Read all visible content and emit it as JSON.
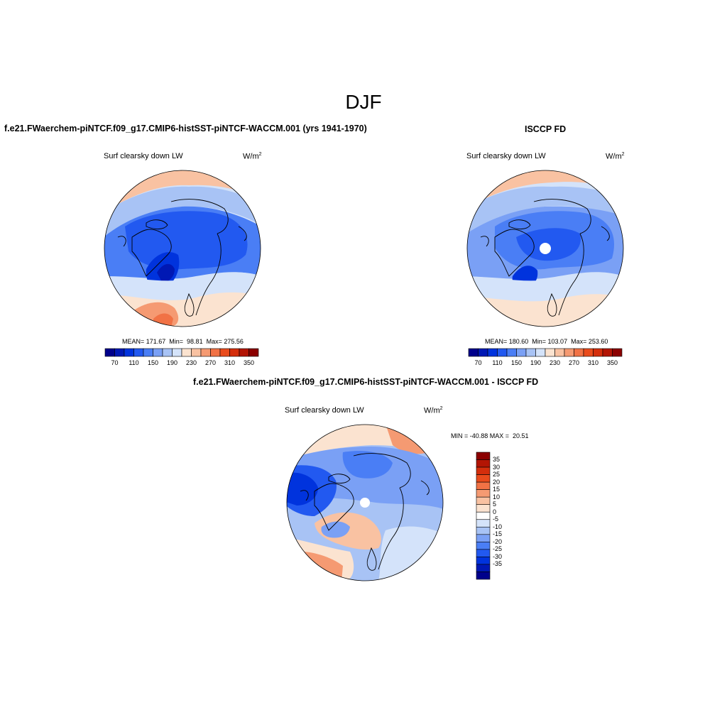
{
  "figure": {
    "season_title": "DJF",
    "model_title": "f.e21.FWaerchem-piNTCF.f09_g17.CMIP6-histSST-piNTCF-WACCM.001 (yrs 1941-1970)",
    "obs_title": "ISCCP FD",
    "diff_title": "f.e21.FWaerchem-piNTCF.f09_g17.CMIP6-histSST-piNTCF-WACCM.001 - ISCCP FD"
  },
  "panels": {
    "model": {
      "variable": "Surf clearsky down LW",
      "units_base": "W/m",
      "units_exp": "2",
      "stats": "MEAN= 171.67  Min=  98.81  Max= 275.56"
    },
    "obs": {
      "variable": "Surf clearsky down LW",
      "units_base": "W/m",
      "units_exp": "2",
      "stats": "MEAN= 180.60  Min= 103.07  Max= 253.60"
    },
    "diff": {
      "variable": "Surf clearsky down LW",
      "units_base": "W/m",
      "units_exp": "2",
      "stats": "MIN = -40.88 MAX =  20.51"
    }
  },
  "colorbars": {
    "abs": {
      "orientation": "horizontal",
      "colors": [
        "#00008b",
        "#0018b4",
        "#0033dd",
        "#2259f0",
        "#4a7ef5",
        "#7aa0f5",
        "#a8c3f5",
        "#d4e3fa",
        "#fbe3d0",
        "#f9c2a2",
        "#f59a72",
        "#f17245",
        "#e94b1c",
        "#d42e0c",
        "#b31504",
        "#8b0000"
      ],
      "tick_labels": [
        "70",
        "110",
        "150",
        "190",
        "230",
        "270",
        "310",
        "350"
      ]
    },
    "diff": {
      "orientation": "vertical",
      "colors": [
        "#8b0000",
        "#b31504",
        "#d42e0c",
        "#e94b1c",
        "#f17245",
        "#f59a72",
        "#f9c2a2",
        "#fbe3d0",
        "#ffffff",
        "#d4e3fa",
        "#a8c3f5",
        "#7aa0f5",
        "#4a7ef5",
        "#2259f0",
        "#0033dd",
        "#0018b4",
        "#00008b"
      ],
      "labels": [
        "35",
        "30",
        "25",
        "20",
        "15",
        "10",
        "5",
        "0",
        "-5",
        "-10",
        "-15",
        "-20",
        "-25",
        "-30",
        "-35"
      ]
    }
  }
}
